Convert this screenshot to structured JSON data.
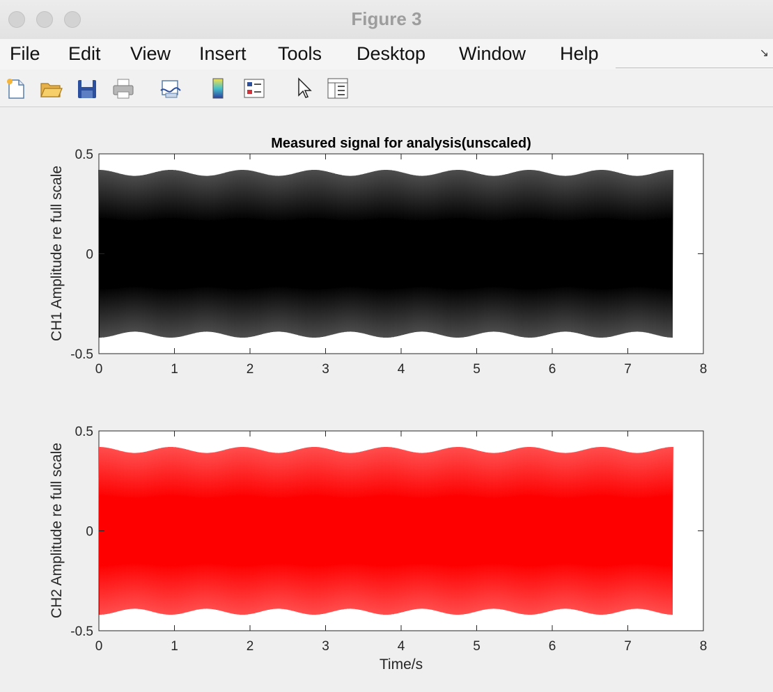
{
  "window": {
    "title": "Figure 3"
  },
  "menu": {
    "items": [
      "File",
      "Edit",
      "View",
      "Insert",
      "Tools",
      "Desktop",
      "Window",
      "Help"
    ]
  },
  "toolbar": {
    "icons": [
      "new-figure-icon",
      "open-file-icon",
      "save-icon",
      "print-icon",
      "link-plot-icon",
      "colorbar-icon",
      "legend-icon",
      "pointer-icon",
      "property-inspector-icon"
    ]
  },
  "chart_data": [
    {
      "type": "line",
      "title": "Measured signal for analysis(unscaled)",
      "xlabel": "",
      "ylabel": "CH1 Amplitude re full scale",
      "xlim": [
        0,
        8
      ],
      "ylim": [
        -0.5,
        0.5
      ],
      "xticks": [
        "0",
        "1",
        "2",
        "3",
        "4",
        "5",
        "6",
        "7",
        "8"
      ],
      "yticks": [
        "-0.5",
        "0",
        "0.5"
      ],
      "series": [
        {
          "color": "#000000",
          "x_range": [
            0,
            7.6
          ],
          "amplitude": 0.42,
          "envelope_min": 0.39
        }
      ]
    },
    {
      "type": "line",
      "title": "",
      "xlabel": "Time/s",
      "ylabel": "CH2 Amplitude re full scale",
      "xlim": [
        0,
        8
      ],
      "ylim": [
        -0.5,
        0.5
      ],
      "xticks": [
        "0",
        "1",
        "2",
        "3",
        "4",
        "5",
        "6",
        "7",
        "8"
      ],
      "yticks": [
        "-0.5",
        "0",
        "0.5"
      ],
      "series": [
        {
          "color": "#ff0000",
          "x_range": [
            0,
            7.6
          ],
          "amplitude": 0.42,
          "envelope_min": 0.39
        }
      ]
    }
  ]
}
